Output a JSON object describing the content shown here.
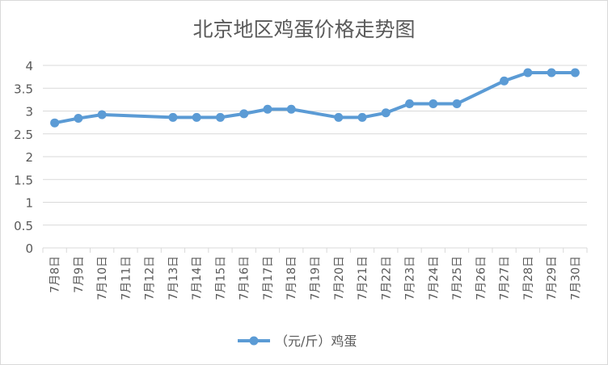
{
  "chart_data": {
    "type": "line",
    "title": "北京地区鸡蛋价格走势图",
    "xlabel": "",
    "ylabel": "",
    "categories": [
      "7月8日",
      "7月9日",
      "7月10日",
      "7月11日",
      "7月12日",
      "7月13日",
      "7月14日",
      "7月15日",
      "7月16日",
      "7月17日",
      "7月18日",
      "7月19日",
      "7月20日",
      "7月21日",
      "7月22日",
      "7月23日",
      "7月24日",
      "7月25日",
      "7月26日",
      "7月27日",
      "7月28日",
      "7月29日",
      "7月30日"
    ],
    "series": [
      {
        "name": "（元/斤）鸡蛋",
        "color": "#5b9bd5",
        "values": [
          2.74,
          2.84,
          2.92,
          null,
          null,
          2.86,
          2.86,
          2.86,
          2.94,
          3.04,
          3.04,
          null,
          2.86,
          2.86,
          2.96,
          3.16,
          3.16,
          3.16,
          null,
          3.66,
          3.84,
          3.84,
          3.84
        ]
      }
    ],
    "ylim": [
      0,
      4
    ],
    "yticks": [
      0,
      0.5,
      1,
      1.5,
      2,
      2.5,
      3,
      3.5,
      4
    ],
    "grid": true,
    "legend": "bottom"
  }
}
